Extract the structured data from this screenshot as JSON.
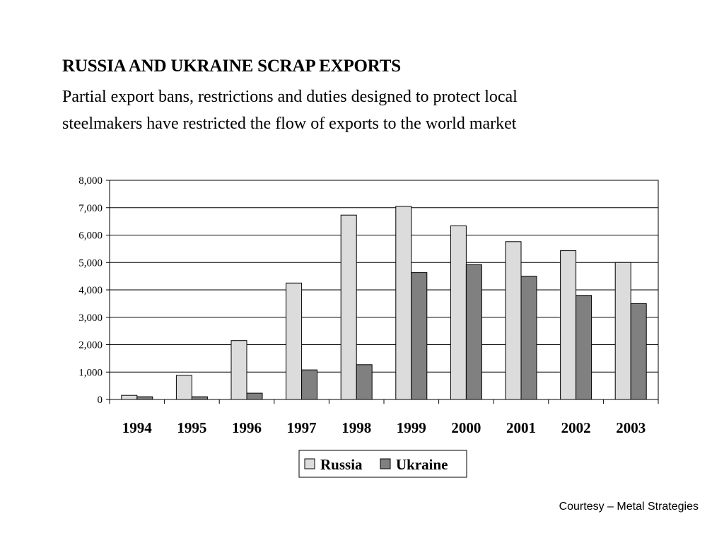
{
  "slide": {
    "title": "RUSSIA AND UKRAINE SCRAP EXPORTS",
    "subtitle_line1": "Partial export bans, restrictions and duties designed to protect local",
    "subtitle_line2": "steelmakers have restricted the flow of exports to the world market",
    "courtesy": "Courtesy – Metal Strategies"
  },
  "chart_data": {
    "type": "bar",
    "title": "",
    "xlabel": "",
    "ylabel": "",
    "categories": [
      "1994",
      "1995",
      "1996",
      "1997",
      "1998",
      "1999",
      "2000",
      "2001",
      "2002",
      "2003"
    ],
    "series": [
      {
        "name": "Russia",
        "color": "#dcdcdc",
        "values": [
          150,
          880,
          2150,
          4250,
          6730,
          7050,
          6340,
          5760,
          5430,
          5000
        ]
      },
      {
        "name": "Ukraine",
        "color": "#808080",
        "values": [
          100,
          100,
          230,
          1080,
          1270,
          4630,
          4920,
          4500,
          3800,
          3500
        ]
      }
    ],
    "ylim": [
      0,
      8000
    ],
    "yticks": [
      "0",
      "1,000",
      "2,000",
      "3,000",
      "4,000",
      "5,000",
      "6,000",
      "7,000",
      "8,000"
    ],
    "grid": true,
    "legend": "bottom"
  }
}
